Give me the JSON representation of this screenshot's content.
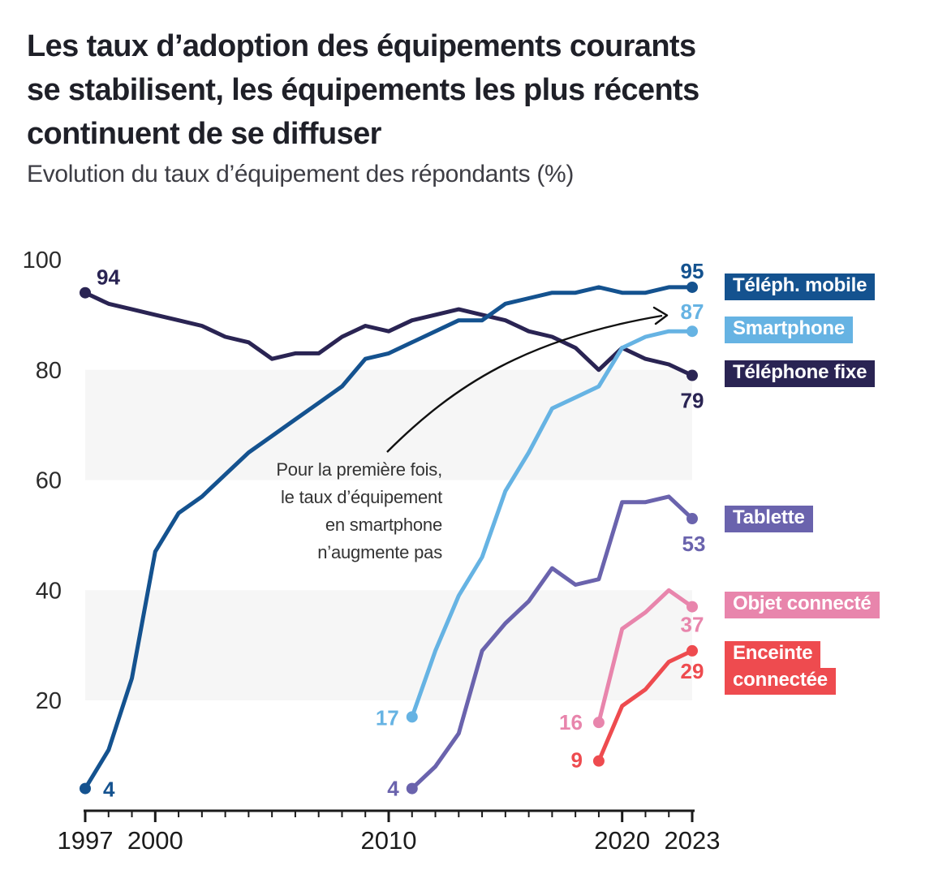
{
  "header": {
    "title_lines": [
      "Les taux d’adoption des équipements courants",
      "se stabilisent, les équipements les plus récents",
      "continuent de se diffuser"
    ]
  },
  "annotation": {
    "lines": [
      "Pour la première fois,",
      "le taux d’équipement",
      "en smartphone",
      "n’augmente pas"
    ]
  },
  "chart_data": {
    "type": "line",
    "title": "Evolution du taux d’équipement des répondants (%)",
    "xlabel": "",
    "ylabel": "",
    "x_axis": {
      "range": [
        1997,
        2023
      ],
      "ticks_labeled": [
        1997,
        2000,
        2010,
        2020,
        2023
      ]
    },
    "y_axis": {
      "range": [
        0,
        100
      ],
      "ticks": [
        20,
        40,
        60,
        80,
        100
      ],
      "bands": [
        [
          20,
          40
        ],
        [
          60,
          80
        ]
      ]
    },
    "legend_position": "right",
    "series": [
      {
        "id": "mobile",
        "legend_lines": [
          "Téléph. mobile"
        ],
        "color": "#14528f",
        "start_year": 1997,
        "values": [
          4,
          11,
          24,
          47,
          54,
          57,
          61,
          65,
          68,
          71,
          74,
          77,
          82,
          83,
          85,
          87,
          89,
          89,
          92,
          93,
          94,
          94,
          95,
          94,
          94,
          95,
          95
        ],
        "first_label": "4",
        "last_label": "95"
      },
      {
        "id": "smartphone",
        "legend_lines": [
          "Smartphone"
        ],
        "color": "#66b3e3",
        "start_year": 2011,
        "values": [
          17,
          29,
          39,
          46,
          58,
          65,
          73,
          75,
          77,
          84,
          86,
          87,
          87
        ],
        "first_label": "17",
        "last_label": "87"
      },
      {
        "id": "fixe",
        "legend_lines": [
          "Téléphone fixe"
        ],
        "color": "#2a2453",
        "start_year": 1997,
        "values": [
          94,
          92,
          91,
          90,
          89,
          88,
          86,
          85,
          82,
          83,
          83,
          86,
          88,
          87,
          89,
          90,
          91,
          90,
          89,
          87,
          86,
          84,
          80,
          84,
          82,
          81,
          79
        ],
        "first_label": "94",
        "last_label": "79"
      },
      {
        "id": "tablette",
        "legend_lines": [
          "Tablette"
        ],
        "color": "#6a63ad",
        "start_year": 2011,
        "values": [
          4,
          8,
          14,
          29,
          34,
          38,
          44,
          41,
          42,
          56,
          56,
          57,
          53
        ],
        "first_label": "4",
        "last_label": "53"
      },
      {
        "id": "objet",
        "legend_lines": [
          "Objet connecté"
        ],
        "color": "#e885ac",
        "start_year": 2019,
        "values": [
          16,
          33,
          36,
          40,
          37
        ],
        "first_label": "16",
        "last_label": "37"
      },
      {
        "id": "enceinte",
        "legend_lines": [
          "Enceinte",
          "connectée"
        ],
        "color": "#ee4b4f",
        "start_year": 2019,
        "values": [
          9,
          19,
          22,
          27,
          29
        ],
        "first_label": "9",
        "last_label": "29"
      }
    ]
  }
}
